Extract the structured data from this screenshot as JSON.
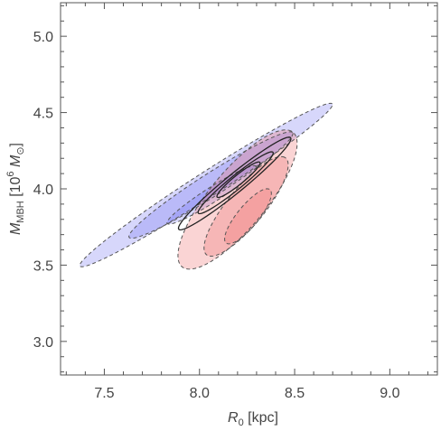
{
  "chart_data": {
    "type": "contour",
    "xlabel": {
      "main": "R",
      "sub": "0",
      "unit": " [kpc]"
    },
    "ylabel": {
      "main": "M",
      "sub": "MBH",
      "unit_open": " [10",
      "unit_sup": "6",
      "unit_mass": " M",
      "unit_sub": "⊙",
      "unit_close": "]"
    },
    "xlim": [
      7.27,
      9.25
    ],
    "ylim": [
      2.78,
      5.22
    ],
    "x_ticks": [
      {
        "value": 7.5,
        "label": "7.5"
      },
      {
        "value": 8.0,
        "label": "8.0"
      },
      {
        "value": 8.5,
        "label": "8.5"
      },
      {
        "value": 9.0,
        "label": "9.0"
      }
    ],
    "y_ticks": [
      {
        "value": 3.0,
        "label": "3.0"
      },
      {
        "value": 3.5,
        "label": "3.5"
      },
      {
        "value": 4.0,
        "label": "4.0"
      },
      {
        "value": 4.5,
        "label": "4.5"
      },
      {
        "value": 5.0,
        "label": "5.0"
      }
    ],
    "colors": {
      "blue_fill": "#6e6ef0",
      "red_fill": "#f07070",
      "dashed_stroke": "#555555",
      "solid_stroke": "#222222"
    },
    "regions": [
      {
        "group": "blue",
        "level": 3,
        "cx": 8.035,
        "cy": 4.025,
        "a": 0.85,
        "b": 0.075,
        "angle_deg": 38.8,
        "opacity": 0.28,
        "dashed": true
      },
      {
        "group": "blue",
        "level": 2,
        "cx": 8.06,
        "cy": 4.025,
        "a": 0.55,
        "b": 0.07,
        "angle_deg": 38.8,
        "opacity": 0.28,
        "dashed": true
      },
      {
        "group": "blue",
        "level": 1,
        "cx": 8.065,
        "cy": 3.96,
        "a": 0.3,
        "b": 0.045,
        "angle_deg": 38.8,
        "opacity": 0.28,
        "dashed": true
      },
      {
        "group": "red",
        "level": 3,
        "cx": 8.2,
        "cy": 3.93,
        "a": 0.53,
        "b": 0.16,
        "angle_deg": 57.8,
        "opacity": 0.3,
        "dashed": true
      },
      {
        "group": "red",
        "level": 2,
        "cx": 8.245,
        "cy": 3.885,
        "a": 0.38,
        "b": 0.105,
        "angle_deg": 57.8,
        "opacity": 0.3,
        "dashed": true
      },
      {
        "group": "red",
        "level": 1,
        "cx": 8.255,
        "cy": 3.82,
        "a": 0.21,
        "b": 0.06,
        "angle_deg": 57.8,
        "opacity": 0.3,
        "dashed": true
      },
      {
        "group": "joint",
        "level": 3,
        "cx": 8.185,
        "cy": 4.035,
        "a": 0.42,
        "b": 0.055,
        "angle_deg": 45.8,
        "dashed": false
      },
      {
        "group": "joint",
        "level": 2,
        "cx": 8.19,
        "cy": 4.04,
        "a": 0.28,
        "b": 0.04,
        "angle_deg": 45.8,
        "dashed": false
      },
      {
        "group": "joint",
        "level": 1,
        "cx": 8.205,
        "cy": 4.06,
        "a": 0.16,
        "b": 0.028,
        "angle_deg": 45.8,
        "dashed": false
      }
    ]
  }
}
